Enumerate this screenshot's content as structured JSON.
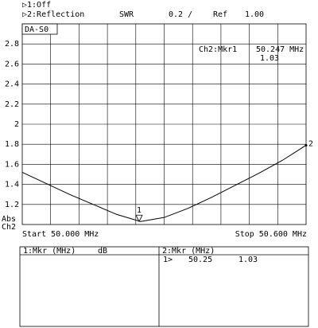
{
  "chart_data": {
    "type": "line",
    "header": {
      "ch1": "▷1:Off",
      "ch2": "▷2:Reflection",
      "format": "SWR",
      "scale": "0.2 /",
      "ref_label": "Ref",
      "ref_value": "1.00"
    },
    "box_label": "DA-S0",
    "readout": {
      "name": "Ch2:Mkr1",
      "freq": "50.247 MHz",
      "value": "1.03"
    },
    "y_label": [
      "Abs",
      "Ch2"
    ],
    "start_label": "Start 50.000 MHz",
    "stop_label": "Stop 50.600 MHz",
    "x": [
      50.0,
      50.05,
      50.1,
      50.15,
      50.2,
      50.25,
      50.3,
      50.35,
      50.4,
      50.45,
      50.5,
      50.55,
      50.6
    ],
    "series": [
      {
        "name": "Ch2",
        "color": "#000000",
        "values": [
          1.52,
          1.41,
          1.3,
          1.2,
          1.1,
          1.03,
          1.07,
          1.16,
          1.27,
          1.39,
          1.51,
          1.64,
          1.79
        ]
      }
    ],
    "markers": [
      {
        "label": "1",
        "x": 50.247,
        "value": 1.03
      },
      {
        "label": "2",
        "x": 50.6,
        "value": 1.79
      }
    ],
    "xlim": [
      50.0,
      50.6
    ],
    "ylim": [
      1.0,
      3.0
    ],
    "xgrid": [
      50.06,
      50.12,
      50.18,
      50.24,
      50.3,
      50.36,
      50.42,
      50.48,
      50.54
    ],
    "yticks": [
      1.2,
      1.4,
      1.6,
      1.8,
      2,
      2.2,
      2.4,
      2.6,
      2.8
    ],
    "grid": true,
    "table": {
      "left_header": "1:Mkr (MHz)",
      "left_unit": "dB",
      "right_header": "2:Mkr (MHz)",
      "rows": [
        [
          "1>",
          "50.25",
          "1.03"
        ]
      ]
    }
  }
}
